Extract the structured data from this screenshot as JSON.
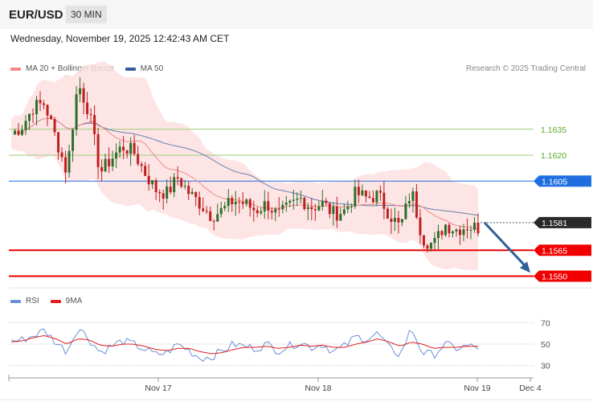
{
  "header": {
    "symbol": "EUR/USD",
    "interval": "30 MIN",
    "datetime": "Wednesday, November 19, 2025 12:42:43 AM CET",
    "credit": "Research © 2025 Trading Central"
  },
  "legend_main": [
    {
      "label": "MA 20 + Bollinger Bands",
      "color": "#f08a8a"
    },
    {
      "label": "MA 50",
      "color": "#335f9e"
    }
  ],
  "legend_rsi": [
    {
      "label": "RSI",
      "color": "#6b8fd6"
    },
    {
      "label": "9MA",
      "color": "#e02020"
    }
  ],
  "chart_data": {
    "type": "candlestick",
    "symbol": "EUR/USD",
    "timeframe": "30 MIN",
    "ylim": [
      1.154,
      1.168
    ],
    "levels": [
      {
        "price": 1.1635,
        "label": "1.1635",
        "style": "thin",
        "color": "#9ecb7d",
        "text_color": "#5aaa2a"
      },
      {
        "price": 1.162,
        "label": "1.1620",
        "style": "thin",
        "color": "#9ecb7d",
        "text_color": "#5aaa2a"
      },
      {
        "price": 1.1605,
        "label": "1.1605",
        "style": "resistance",
        "color": "#1f6fe0"
      },
      {
        "price": 1.1581,
        "label": "1.1581",
        "style": "current",
        "color": "#2a2a2a"
      },
      {
        "price": 1.1565,
        "label": "1.1565",
        "style": "support",
        "color": "#f00000"
      },
      {
        "price": 1.155,
        "label": "1.1550",
        "style": "support",
        "color": "#f00000"
      }
    ],
    "close_path": [
      1.1632,
      1.1637,
      1.1648,
      1.165,
      1.163,
      1.161,
      1.1662,
      1.1645,
      1.161,
      1.1618,
      1.1625,
      1.1622,
      1.161,
      1.16,
      1.1598,
      1.1607,
      1.1598,
      1.1592,
      1.1585,
      1.1588,
      1.1594,
      1.1592,
      1.1588,
      1.1592,
      1.1585,
      1.159,
      1.1595,
      1.159,
      1.1592,
      1.1586,
      1.1588,
      1.1598,
      1.1595,
      1.1597,
      1.1586,
      1.1578,
      1.16,
      1.1572,
      1.1568,
      1.158,
      1.1577,
      1.1579,
      1.1578
    ],
    "candle_count": 130,
    "projection": {
      "from_price": 1.1581,
      "to_price": 1.1552,
      "color": "#2f5f96"
    },
    "x_labels": [
      "Nov 17",
      "Nov 18",
      "Nov 19",
      "Dec 4"
    ],
    "rsi": {
      "levels": [
        70,
        50,
        30
      ],
      "ylim": [
        20,
        80
      ],
      "path": [
        53,
        54,
        58,
        63,
        52,
        43,
        66,
        55,
        42,
        48,
        53,
        50,
        45,
        40,
        42,
        50,
        44,
        37,
        38,
        44,
        50,
        48,
        46,
        50,
        44,
        48,
        52,
        47,
        50,
        43,
        48,
        57,
        55,
        60,
        46,
        40,
        65,
        42,
        40,
        50,
        46,
        48,
        47
      ],
      "ma_path": [
        52,
        53,
        56,
        58,
        55,
        50,
        55,
        54,
        49,
        48,
        50,
        50,
        48,
        45,
        44,
        46,
        46,
        43,
        41,
        42,
        45,
        47,
        47,
        48,
        46,
        47,
        49,
        48,
        49,
        47,
        47,
        50,
        52,
        55,
        52,
        48,
        52,
        50,
        46,
        47,
        47,
        48,
        48
      ]
    }
  }
}
